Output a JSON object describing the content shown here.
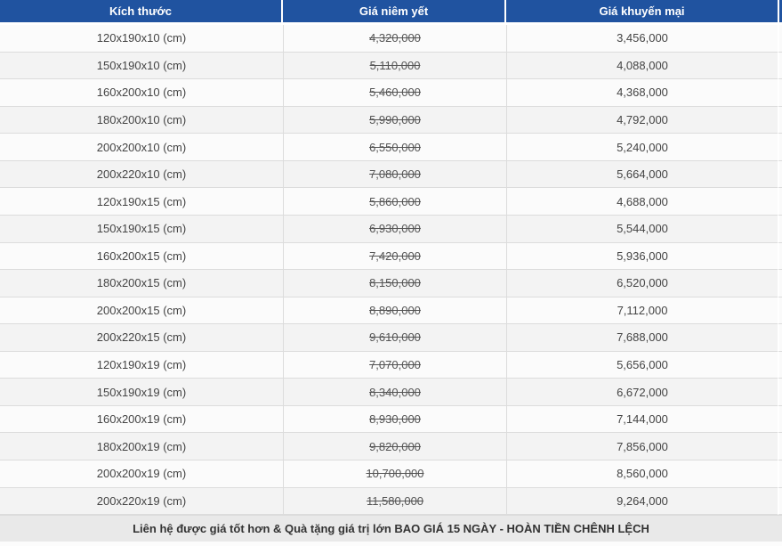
{
  "colors": {
    "header_bg": "#2053a0",
    "header_text": "#ffffff",
    "row_bg_light": "#fbfbfb",
    "row_bg_dark": "#f3f3f3",
    "border": "#dcdcdc",
    "footer_bg": "#e9e9e9",
    "body_text": "#444444",
    "strike_text": "#555555"
  },
  "table": {
    "columns": [
      "Kích thước",
      "Giá niêm yết",
      "Giá khuyến mại"
    ],
    "rows": [
      {
        "size": "120x190x10 (cm)",
        "list_price": "4,320,000",
        "promo_price": "3,456,000"
      },
      {
        "size": "150x190x10 (cm)",
        "list_price": "5,110,000",
        "promo_price": "4,088,000"
      },
      {
        "size": "160x200x10 (cm)",
        "list_price": "5,460,000",
        "promo_price": "4,368,000"
      },
      {
        "size": "180x200x10 (cm)",
        "list_price": "5,990,000",
        "promo_price": "4,792,000"
      },
      {
        "size": "200x200x10 (cm)",
        "list_price": "6,550,000",
        "promo_price": "5,240,000"
      },
      {
        "size": "200x220x10 (cm)",
        "list_price": "7,080,000",
        "promo_price": "5,664,000"
      },
      {
        "size": "120x190x15 (cm)",
        "list_price": "5,860,000",
        "promo_price": "4,688,000"
      },
      {
        "size": "150x190x15 (cm)",
        "list_price": "6,930,000",
        "promo_price": "5,544,000"
      },
      {
        "size": "160x200x15 (cm)",
        "list_price": "7,420,000",
        "promo_price": "5,936,000"
      },
      {
        "size": "180x200x15 (cm)",
        "list_price": "8,150,000",
        "promo_price": "6,520,000"
      },
      {
        "size": "200x200x15 (cm)",
        "list_price": "8,890,000",
        "promo_price": "7,112,000"
      },
      {
        "size": "200x220x15 (cm)",
        "list_price": "9,610,000",
        "promo_price": "7,688,000"
      },
      {
        "size": "120x190x19 (cm)",
        "list_price": "7,070,000",
        "promo_price": "5,656,000"
      },
      {
        "size": "150x190x19 (cm)",
        "list_price": "8,340,000",
        "promo_price": "6,672,000"
      },
      {
        "size": "160x200x19 (cm)",
        "list_price": "8,930,000",
        "promo_price": "7,144,000"
      },
      {
        "size": "180x200x19 (cm)",
        "list_price": "9,820,000",
        "promo_price": "7,856,000"
      },
      {
        "size": "200x200x19 (cm)",
        "list_price": "10,700,000",
        "promo_price": "8,560,000"
      },
      {
        "size": "200x220x19 (cm)",
        "list_price": "11,580,000",
        "promo_price": "9,264,000"
      }
    ],
    "footer_note": "Liên hệ được giá tốt hơn & Quà tặng giá trị lớn BAO GIÁ 15 NGÀY - HOÀN TIỀN CHÊNH LỆCH"
  }
}
